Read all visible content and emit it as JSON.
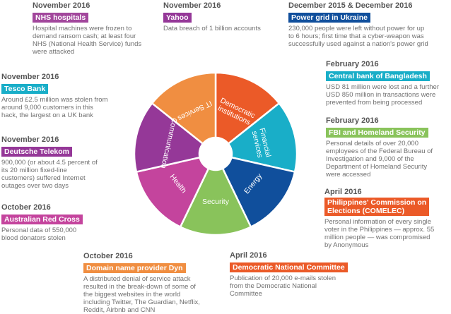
{
  "colors": {
    "date": "#555555",
    "text": "#707070"
  },
  "wheel": {
    "segments": [
      {
        "label": "Democratic institutions",
        "lines": [
          "Democratic",
          "institutions"
        ],
        "color": "#eb5a28"
      },
      {
        "label": "Financial services",
        "lines": [
          "Financial",
          "services"
        ],
        "color": "#19aec8"
      },
      {
        "label": "Energy",
        "lines": [
          "Energy"
        ],
        "color": "#104f9c"
      },
      {
        "label": "Security",
        "lines": [
          "Security"
        ],
        "color": "#89c35b"
      },
      {
        "label": "Health",
        "lines": [
          "Health"
        ],
        "color": "#c4449d"
      },
      {
        "label": "Communication",
        "lines": [
          "Communication"
        ],
        "color": "#953898"
      },
      {
        "label": "IT Services",
        "lines": [
          "IT Services"
        ],
        "color": "#f08e41"
      }
    ]
  },
  "events": {
    "nhs": {
      "date": "November 2016",
      "title": "NHS hospitals",
      "color": "#a2479c",
      "lines": [
        "Hospital machines were frozen to",
        "demand ransom cash; at least four",
        "NHS (National Health Service) funds",
        "were attacked"
      ]
    },
    "yahoo": {
      "date": "November 2016",
      "title": "Yahoo",
      "color": "#953898",
      "lines": [
        "Data breach of 1 billion accounts"
      ]
    },
    "ukraine": {
      "date": "December 2015 & December 2016",
      "title": "Power grid in Ukraine",
      "color": "#104f9c",
      "lines": [
        "230,000 people were left without power for up",
        "to 6 hours; first time that a cyber-weapon was",
        "successfully used against a nation's power grid"
      ]
    },
    "tesco": {
      "date": "November 2016",
      "title": "Tesco Bank",
      "color": "#19aec8",
      "lines": [
        "Around £2.5 million was stolen from",
        "around 9,000 customers in this",
        "hack, the largest on a UK bank"
      ]
    },
    "bangladesh": {
      "date": "February 2016",
      "title": "Central bank of Bangladesh",
      "color": "#19aec8",
      "lines": [
        "USD 81 million were lost and a further",
        "USD 850 million in transactions were",
        "prevented from being processed"
      ]
    },
    "fbi": {
      "date": "February 2016",
      "title": "FBI and Homeland Security",
      "color": "#89c35b",
      "lines": [
        "Personal details of over 20,000",
        "employees of the Federal Bureau of",
        "Investigation and 9,000 of the",
        "Department of Homeland Security",
        "were accessed"
      ]
    },
    "telekom": {
      "date": "November 2016",
      "title": "Deutsche Telekom",
      "color": "#953898",
      "lines": [
        "900,000 (or about 4.5 percent of",
        "its 20 million fixed-line",
        "customers) suffered Internet",
        "outages over two days"
      ]
    },
    "redcross": {
      "date": "October 2016",
      "title": "Australian Red Cross",
      "color": "#c4449d",
      "lines": [
        "Personal data of 550,000",
        "blood donators stolen"
      ]
    },
    "comelec": {
      "date": "April 2016",
      "title_lines": [
        "Philippines' Commission on",
        "Elections (COMELEC)"
      ],
      "color": "#eb5a28",
      "lines": [
        "Personal information of every single",
        "voter in the Philippines — approx. 55",
        "million people — was compromised",
        "by Anonymous"
      ]
    },
    "dyn": {
      "date": "October 2016",
      "title": "Domain name provider Dyn",
      "color": "#f08e41",
      "lines": [
        "A distributed denial of service attack",
        "resulted in the break-down of some of",
        "the biggest websites in the world",
        "including Twitter, The Guardian, Netflix,",
        "Reddit, Airbnb and CNN"
      ]
    },
    "dnc": {
      "date": "April 2016",
      "title": "Democratic National Committee",
      "color": "#eb5a28",
      "lines": [
        "Publication of 20,000 e-mails stolen",
        "from the Democratic National",
        "Committee"
      ]
    }
  }
}
